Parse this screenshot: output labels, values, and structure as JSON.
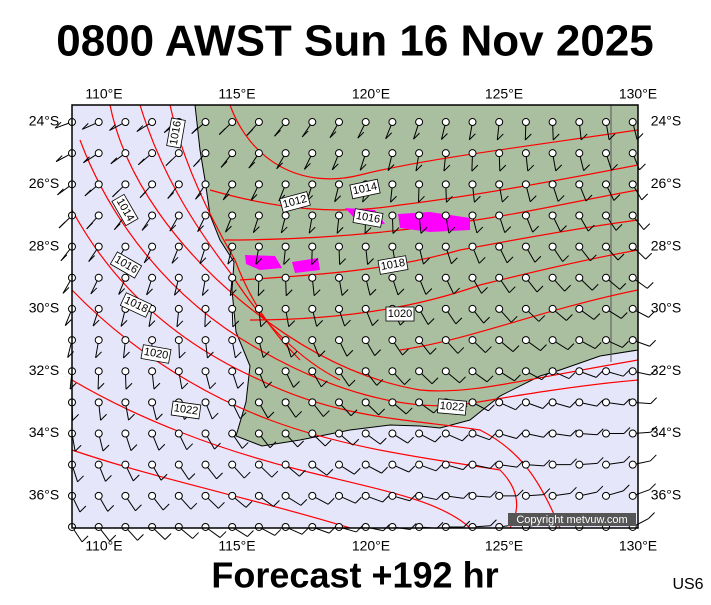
{
  "title": "0800 AWST Sun 16 Nov 2025",
  "footer": "Forecast +192 hr",
  "corner_label": "US6",
  "copyright": "Copyright metvuw.com",
  "x_axis": [
    "110°E",
    "115°E",
    "120°E",
    "125°E",
    "130°E"
  ],
  "y_axis": [
    "24°S",
    "26°S",
    "28°S",
    "30°S",
    "32°S",
    "34°S",
    "36°S"
  ],
  "isobar_labels": [
    "1016",
    "1014",
    "1016",
    "1018",
    "1020",
    "1022",
    "1012",
    "1014",
    "1016",
    "1018",
    "1020",
    "1022"
  ]
}
